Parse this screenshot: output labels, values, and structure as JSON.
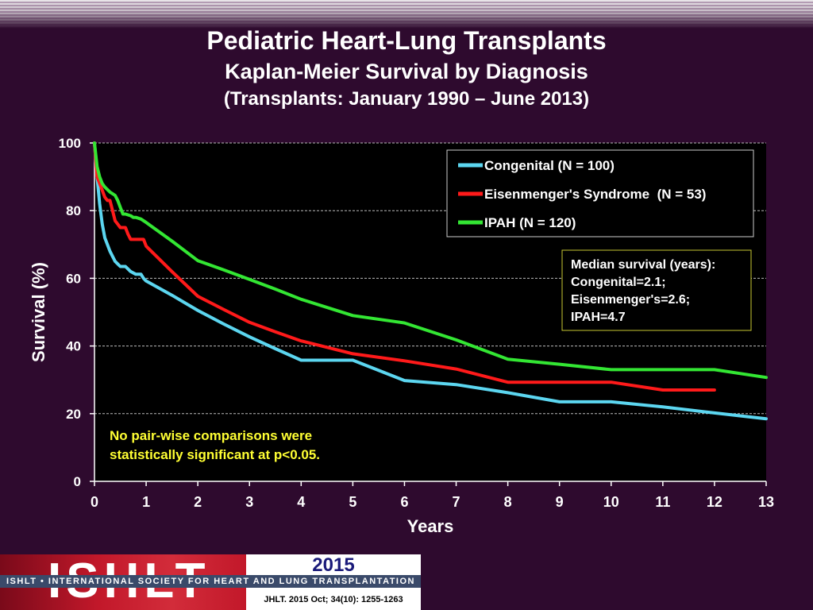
{
  "header": {
    "title": "Pediatric Heart-Lung Transplants",
    "subtitle": "Kaplan-Meier Survival by Diagnosis",
    "date_range": "(Transplants: January 1990 – June 2013)"
  },
  "chart_data": {
    "type": "line",
    "xlabel": "Years",
    "ylabel": "Survival (%)",
    "xlim": [
      0,
      13
    ],
    "ylim": [
      0,
      100
    ],
    "xticks": [
      "0",
      "1",
      "2",
      "3",
      "4",
      "5",
      "6",
      "7",
      "8",
      "9",
      "10",
      "11",
      "12",
      "13"
    ],
    "yticks": [
      "0",
      "20",
      "40",
      "60",
      "80",
      "100"
    ],
    "grid": "horizontal-dashed",
    "legend_position": "top-right",
    "series": [
      {
        "name": "Congenital (N = 100)",
        "color": "#5cd6f0",
        "x": [
          0,
          0.05,
          0.1,
          0.15,
          0.2,
          0.3,
          0.4,
          0.5,
          0.6,
          0.7,
          0.8,
          0.9,
          0.95,
          1,
          1.5,
          2,
          2.5,
          3,
          3.5,
          4,
          5,
          6,
          7,
          8,
          9,
          10,
          11,
          12,
          13
        ],
        "values": [
          100,
          90,
          82,
          76,
          72,
          68,
          65,
          63.5,
          63.5,
          62,
          61.2,
          61.2,
          60,
          59.2,
          55,
          50.5,
          46.5,
          42.7,
          39.2,
          35.8,
          35.8,
          29.8,
          28.6,
          26.2,
          23.5,
          23.5,
          22,
          20.2,
          18.5
        ]
      },
      {
        "name": "Eisenmenger's Syndrome  (N = 53)",
        "color": "#ff1a1a",
        "x": [
          0,
          0.05,
          0.1,
          0.15,
          0.2,
          0.25,
          0.3,
          0.35,
          0.4,
          0.45,
          0.5,
          0.55,
          0.6,
          0.65,
          0.7,
          0.75,
          0.8,
          0.9,
          0.95,
          1,
          1.5,
          2,
          2.5,
          3,
          3.5,
          4,
          5,
          6,
          7,
          8,
          9,
          10,
          11,
          12
        ],
        "values": [
          100,
          90,
          88,
          86,
          84,
          83,
          83,
          80,
          77,
          76,
          75,
          75,
          75,
          73,
          71.5,
          71.5,
          71.5,
          71.5,
          71.5,
          69.5,
          62,
          54.7,
          50.8,
          47,
          44.2,
          41.5,
          37.7,
          35.6,
          33.2,
          29.3,
          29.3,
          29.3,
          27,
          27
        ]
      },
      {
        "name": "IPAH (N = 120)",
        "color": "#33e633",
        "x": [
          0,
          0.05,
          0.1,
          0.15,
          0.2,
          0.3,
          0.4,
          0.45,
          0.5,
          0.55,
          0.6,
          0.7,
          0.75,
          0.8,
          0.9,
          1,
          1.5,
          2,
          2.5,
          3,
          3.5,
          4,
          5,
          6,
          7,
          8,
          9,
          10,
          11,
          12,
          13
        ],
        "values": [
          100,
          93,
          90,
          88,
          87,
          85.5,
          84.5,
          83,
          81,
          79,
          79,
          78.5,
          78,
          78,
          77.5,
          76.5,
          71,
          65.2,
          62.5,
          59.7,
          56.8,
          53.8,
          49,
          46.8,
          41.8,
          36.1,
          34.6,
          33,
          33,
          33,
          30.7
        ]
      }
    ],
    "annotations": {
      "median_box": [
        "Median survival (years):",
        "Congenital=2.1;",
        "Eisenmenger's=2.6;",
        "IPAH=4.7"
      ],
      "significance_note": [
        "No pair-wise comparisons were",
        "statistically significant at p<0.05."
      ]
    }
  },
  "footer": {
    "logo": "ISHLT",
    "society": "ISHLT • INTERNATIONAL SOCIETY FOR HEART AND LUNG TRANSPLANTATION",
    "year": "2015",
    "citation": "JHLT. 2015 Oct; 34(10): 1255-1263"
  },
  "colors": {
    "background": "#2e0a2e",
    "plot_area": "#000000",
    "annotation_text": "#ffff33"
  }
}
